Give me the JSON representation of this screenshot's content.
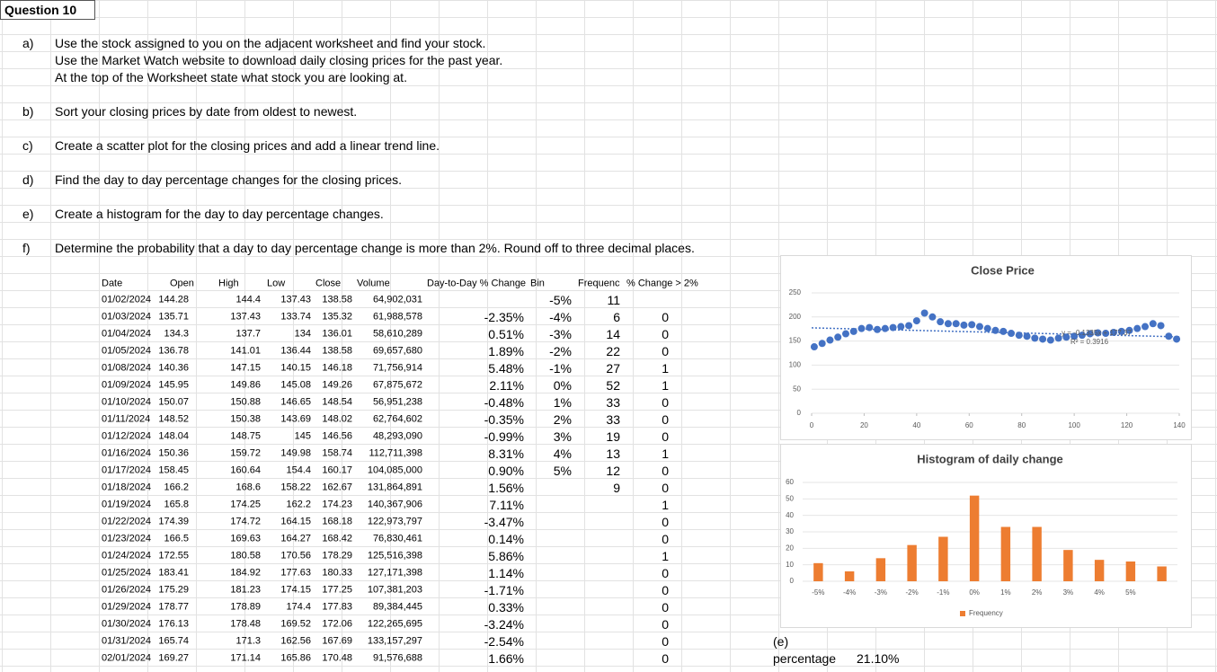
{
  "title": "Question 10",
  "questions": [
    {
      "label": "a)",
      "lines": [
        "Use the stock assigned to you on the adjacent worksheet and find your stock.",
        "Use the Market Watch website to download daily closing prices for the past year.",
        "At the top of the Worksheet state what stock you are looking at."
      ]
    },
    {
      "label": "b)",
      "lines": [
        "Sort your closing prices by date from oldest to newest."
      ]
    },
    {
      "label": "c)",
      "lines": [
        "Create a scatter plot for the closing prices and add a linear trend line."
      ]
    },
    {
      "label": "d)",
      "lines": [
        "Find the day to day percentage changes for the closing prices."
      ]
    },
    {
      "label": "e)",
      "lines": [
        "Create a histogram for the day to day percentage changes."
      ]
    },
    {
      "label": "f)",
      "lines": [
        "Determine the probability that a day to day percentage change is more than 2%. Round off to three decimal places."
      ]
    }
  ],
  "table": {
    "header": [
      "Date",
      "Open",
      "High",
      "Low",
      "Close",
      "Volume",
      "Day-to-Day % Change",
      "Bin",
      "Frequenc",
      "% Change > 2%"
    ],
    "rows": [
      [
        "01/02/2024",
        "144.28",
        "144.4",
        "137.43",
        "138.58",
        "64,902,031",
        null,
        "-5%",
        "11",
        null
      ],
      [
        "01/03/2024",
        "135.71",
        "137.43",
        "133.74",
        "135.32",
        "61,988,578",
        "-2.35%",
        "-4%",
        "6",
        "0"
      ],
      [
        "01/04/2024",
        "134.3",
        "137.7",
        "134",
        "136.01",
        "58,610,289",
        "0.51%",
        "-3%",
        "14",
        "0"
      ],
      [
        "01/05/2024",
        "136.78",
        "141.01",
        "136.44",
        "138.58",
        "69,657,680",
        "1.89%",
        "-2%",
        "22",
        "0"
      ],
      [
        "01/08/2024",
        "140.36",
        "147.15",
        "140.15",
        "146.18",
        "71,756,914",
        "5.48%",
        "-1%",
        "27",
        "1"
      ],
      [
        "01/09/2024",
        "145.95",
        "149.86",
        "145.08",
        "149.26",
        "67,875,672",
        "2.11%",
        "0%",
        "52",
        "1"
      ],
      [
        "01/10/2024",
        "150.07",
        "150.88",
        "146.65",
        "148.54",
        "56,951,238",
        "-0.48%",
        "1%",
        "33",
        "0"
      ],
      [
        "01/11/2024",
        "148.52",
        "150.38",
        "143.69",
        "148.02",
        "62,764,602",
        "-0.35%",
        "2%",
        "33",
        "0"
      ],
      [
        "01/12/2024",
        "148.04",
        "148.75",
        "145",
        "146.56",
        "48,293,090",
        "-0.99%",
        "3%",
        "19",
        "0"
      ],
      [
        "01/16/2024",
        "150.36",
        "159.72",
        "149.98",
        "158.74",
        "112,711,398",
        "8.31%",
        "4%",
        "13",
        "1"
      ],
      [
        "01/17/2024",
        "158.45",
        "160.64",
        "154.4",
        "160.17",
        "104,085,000",
        "0.90%",
        "5%",
        "12",
        "0"
      ],
      [
        "01/18/2024",
        "166.2",
        "168.6",
        "158.22",
        "162.67",
        "131,864,891",
        "1.56%",
        null,
        "9",
        "0"
      ],
      [
        "01/19/2024",
        "165.8",
        "174.25",
        "162.2",
        "174.23",
        "140,367,906",
        "7.11%",
        null,
        null,
        "1"
      ],
      [
        "01/22/2024",
        "174.39",
        "174.72",
        "164.15",
        "168.18",
        "122,973,797",
        "-3.47%",
        null,
        null,
        "0"
      ],
      [
        "01/23/2024",
        "166.5",
        "169.63",
        "164.27",
        "168.42",
        "76,830,461",
        "0.14%",
        null,
        null,
        "0"
      ],
      [
        "01/24/2024",
        "172.55",
        "180.58",
        "170.56",
        "178.29",
        "125,516,398",
        "5.86%",
        null,
        null,
        "1"
      ],
      [
        "01/25/2024",
        "183.41",
        "184.92",
        "177.63",
        "180.33",
        "127,171,398",
        "1.14%",
        null,
        null,
        "0"
      ],
      [
        "01/26/2024",
        "175.29",
        "181.23",
        "174.15",
        "177.25",
        "107,381,203",
        "-1.71%",
        null,
        null,
        "0"
      ],
      [
        "01/29/2024",
        "178.77",
        "178.89",
        "174.4",
        "177.83",
        "89,384,445",
        "0.33%",
        null,
        null,
        "0"
      ],
      [
        "01/30/2024",
        "176.13",
        "178.48",
        "169.52",
        "172.06",
        "122,265,695",
        "-3.24%",
        null,
        null,
        "0"
      ],
      [
        "01/31/2024",
        "165.74",
        "171.3",
        "162.56",
        "167.69",
        "133,157,297",
        "-2.54%",
        null,
        null,
        "0"
      ],
      [
        "02/01/2024",
        "169.27",
        "171.14",
        "165.86",
        "170.48",
        "91,576,688",
        "1.66%",
        null,
        null,
        "0"
      ]
    ]
  },
  "charts": [
    {
      "type": "scatter",
      "title": "Close Price",
      "color": "#4472c4",
      "x": [
        1,
        4,
        7,
        10,
        13,
        16,
        19,
        22,
        25,
        28,
        31,
        34,
        37,
        40,
        43,
        46,
        49,
        52,
        55,
        58,
        61,
        64,
        67,
        70,
        73,
        76,
        79,
        82,
        85,
        88,
        91,
        94,
        97,
        100,
        103,
        106,
        109,
        112,
        115,
        118,
        121,
        124,
        127,
        130,
        133,
        136,
        139
      ],
      "values": [
        138,
        145,
        152,
        158,
        165,
        170,
        176,
        178,
        174,
        176,
        178,
        180,
        182,
        192,
        208,
        200,
        190,
        186,
        186,
        183,
        184,
        180,
        176,
        172,
        170,
        166,
        162,
        160,
        156,
        154,
        152,
        156,
        158,
        160,
        162,
        165,
        167,
        166,
        168,
        170,
        172,
        176,
        180,
        186,
        182,
        160,
        154
      ],
      "xlim": [
        0,
        140
      ],
      "xticks": [
        0,
        20,
        40,
        60,
        80,
        100,
        120,
        140
      ],
      "ylim": [
        0,
        250
      ],
      "yticks": [
        0,
        50,
        100,
        150,
        200,
        250
      ],
      "grid": true,
      "trendline": {
        "slope": -0.1335,
        "intercept": 177.37,
        "equation": "y = -0.1335x + 177.37",
        "r2": "R² = 0.3916"
      }
    },
    {
      "type": "bar",
      "title": "Histogram of daily change",
      "color": "#ed7d31",
      "legend": "Frequency",
      "categories": [
        "-5%",
        "-4%",
        "-3%",
        "-2%",
        "-1%",
        "0%",
        "1%",
        "2%",
        "3%",
        "4%",
        "5%",
        null
      ],
      "values": [
        11,
        6,
        14,
        22,
        27,
        52,
        33,
        33,
        19,
        13,
        12,
        9
      ],
      "ylim": [
        0,
        60
      ],
      "yticks": [
        0,
        10,
        20,
        30,
        40,
        50,
        60
      ],
      "grid": true
    }
  ],
  "result": {
    "label": "(e)",
    "name": "percentage",
    "value": "21.10%"
  }
}
